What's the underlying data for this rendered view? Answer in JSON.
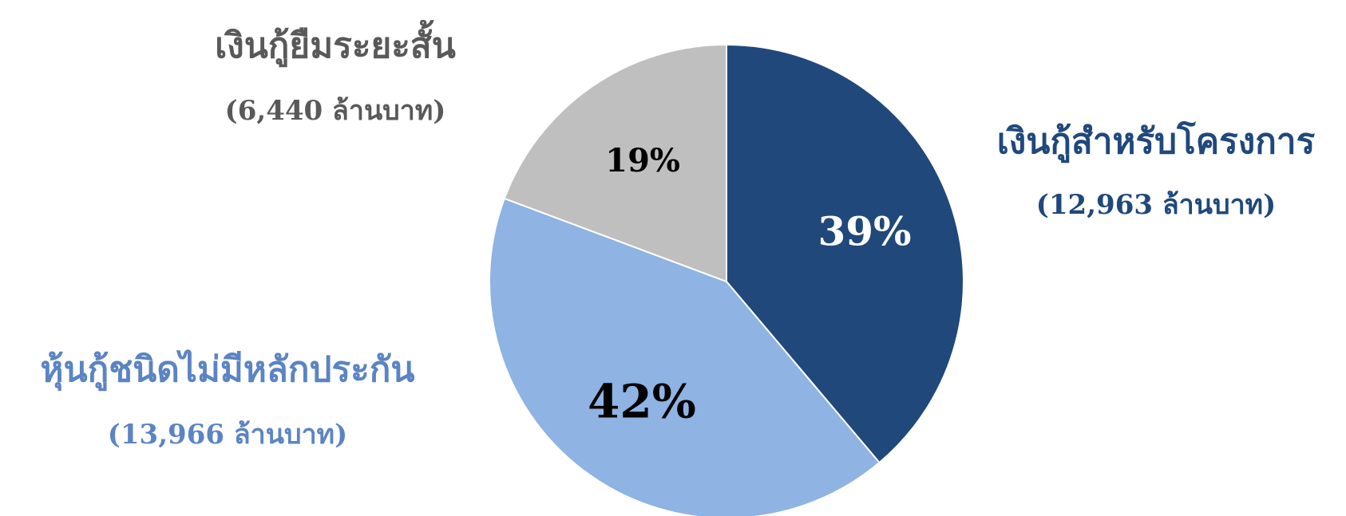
{
  "chart_data": {
    "type": "pie",
    "title": "",
    "start_angle_deg": 0,
    "direction": "clockwise",
    "slices": [
      {
        "name": "เงินกู้สำหรับโครงการ",
        "value": 12963,
        "value_label": "(12,963 ล้านบาท)",
        "percent_label": "39%",
        "color": "#20487b",
        "text_color": "#20487b",
        "percent_color": "#ffffff"
      },
      {
        "name": "หุ้นกู้ชนิดไม่มีหลักประกัน",
        "value": 13966,
        "value_label": "(13,966 ล้านบาท)",
        "percent_label": "42%",
        "color": "#8fb3e2",
        "text_color": "#5b84c4",
        "percent_color": "#000000"
      },
      {
        "name": "เงินกู้ยืมระยะสั้น",
        "value": 6440,
        "value_label": "(6,440 ล้านบาท)",
        "percent_label": "19%",
        "color": "#bfbfbf",
        "text_color": "#595959",
        "percent_color": "#000000"
      }
    ]
  }
}
